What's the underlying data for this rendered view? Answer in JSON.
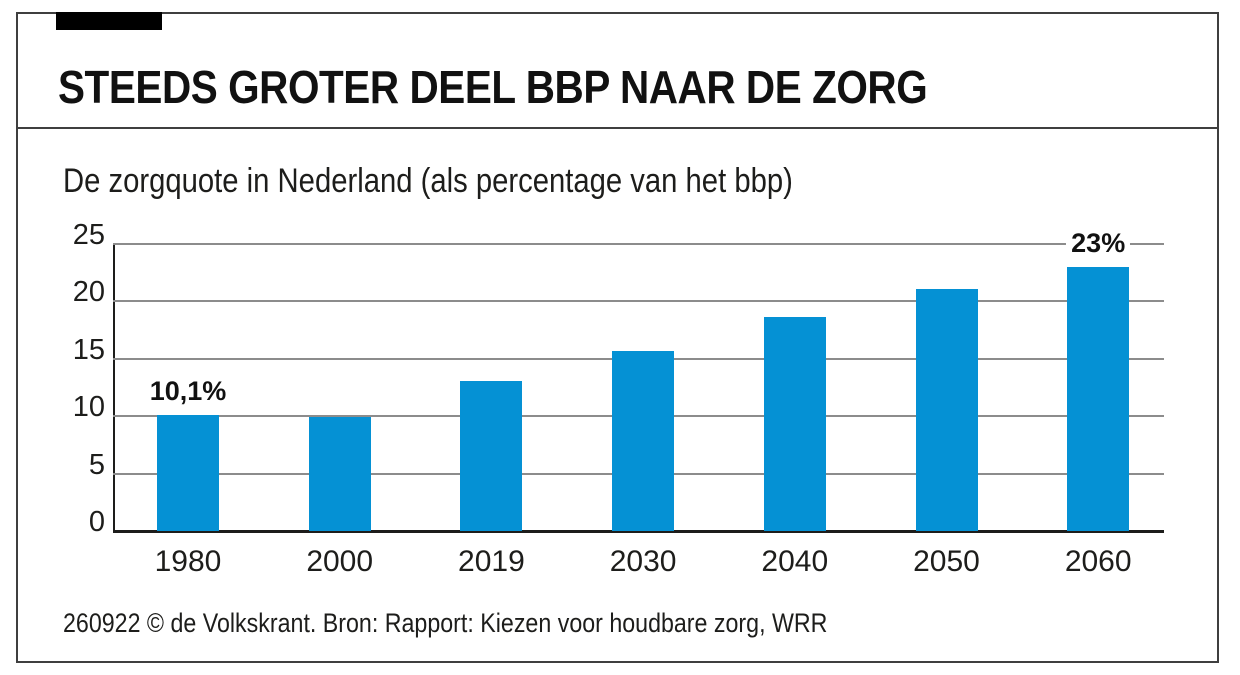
{
  "window": {
    "background": "#ffffff",
    "frame_border_color": "#3f3f3f",
    "brand_tab_color": "#000000"
  },
  "header": {
    "title": "STEEDS GROTER DEEL BBP NAAR DE ZORG"
  },
  "chart_data": {
    "type": "bar",
    "title": "De zorgquote in Nederland (als percentage van het bbp)",
    "categories": [
      "1980",
      "2000",
      "2019",
      "2030",
      "2040",
      "2050",
      "2060"
    ],
    "values": [
      10.1,
      9.9,
      13.1,
      15.7,
      18.6,
      21.1,
      23
    ],
    "bar_value_labels": [
      "10,1%",
      "",
      "",
      "",
      "",
      "",
      "23%"
    ],
    "ylim": [
      0,
      25
    ],
    "yticks": [
      0,
      5,
      10,
      15,
      20,
      25
    ],
    "grid": "horizontal",
    "legend": "none",
    "xlabel": "",
    "ylabel": "",
    "bar_color": "#0591d4",
    "gridline_color": "#8c8c8c",
    "axis_color": "#1d1d1b"
  },
  "footer": {
    "credit": "260922 © de Volkskrant. Bron: Rapport: Kiezen voor houdbare zorg, WRR"
  }
}
